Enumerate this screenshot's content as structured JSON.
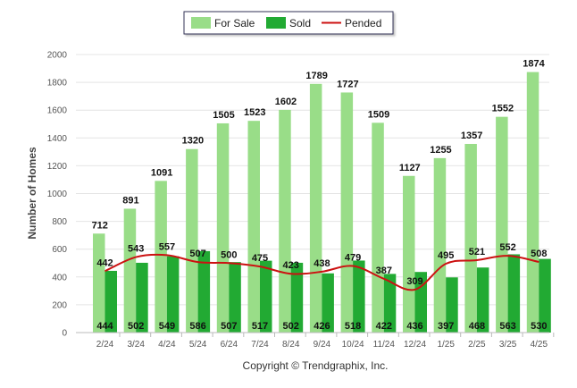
{
  "chart_data": {
    "type": "bar",
    "ylabel": "Number of Homes",
    "ylim": [
      0,
      2000
    ],
    "yticks": [
      0,
      200,
      400,
      600,
      800,
      1000,
      1200,
      1400,
      1600,
      1800,
      2000
    ],
    "categories": [
      "2/24",
      "3/24",
      "4/24",
      "5/24",
      "6/24",
      "7/24",
      "8/24",
      "9/24",
      "10/24",
      "11/24",
      "12/24",
      "1/25",
      "2/25",
      "3/25",
      "4/25"
    ],
    "series": [
      {
        "name": "For Sale",
        "kind": "bar",
        "color": "#99dd88",
        "values": [
          712,
          891,
          1091,
          1320,
          1505,
          1523,
          1602,
          1789,
          1727,
          1509,
          1127,
          1255,
          1357,
          1552,
          1874
        ]
      },
      {
        "name": "Sold",
        "kind": "bar",
        "color": "#22aa33",
        "values": [
          444,
          502,
          549,
          586,
          507,
          517,
          502,
          426,
          518,
          422,
          436,
          397,
          468,
          563,
          530
        ]
      },
      {
        "name": "Pended",
        "kind": "line",
        "color": "#cc1111",
        "values": [
          442,
          543,
          557,
          507,
          500,
          475,
          423,
          438,
          479,
          387,
          309,
          495,
          521,
          552,
          508
        ]
      }
    ],
    "legend_position": "top-center",
    "grid": true
  },
  "footer": {
    "copyright": "Copyright © Trendgraphix, Inc."
  }
}
